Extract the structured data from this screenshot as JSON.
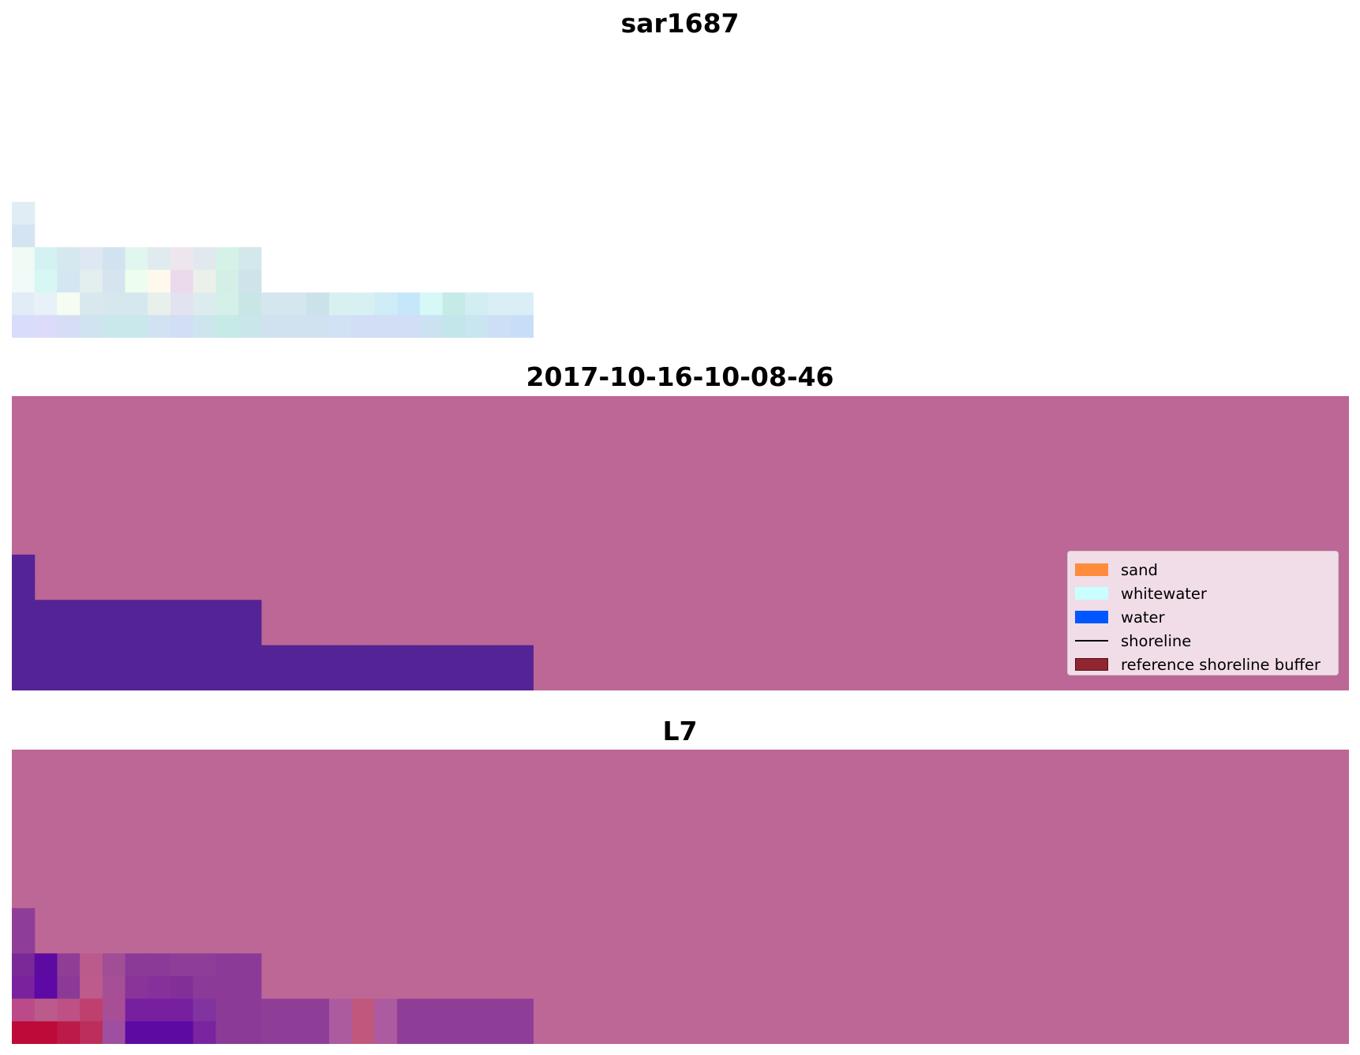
{
  "panels": [
    {
      "title": "sar1687"
    },
    {
      "title": "2017-10-16-10-08-46"
    },
    {
      "title": "L7"
    }
  ],
  "legend": {
    "items": [
      {
        "label": "sand",
        "kind": "patch",
        "color": "#fe8c3c"
      },
      {
        "label": "whitewater",
        "kind": "patch",
        "color": "#c9ffff"
      },
      {
        "label": "water",
        "kind": "patch",
        "color": "#0057ff"
      },
      {
        "label": "shoreline",
        "kind": "line",
        "color": "#000000"
      },
      {
        "label": "reference shoreline buffer",
        "kind": "patch",
        "color": "#8f2630"
      }
    ]
  },
  "colors": {
    "nodata": "#bd6796",
    "water_class": "#542396"
  },
  "image_grids": {
    "sar_rgb": [
      [
        "#e0edf4",
        null,
        null,
        null,
        null,
        null,
        null,
        null,
        null,
        null,
        null,
        null,
        null,
        null,
        null,
        null,
        null,
        null,
        null,
        null,
        null,
        null,
        null
      ],
      [
        "#d5e4f2",
        null,
        null,
        null,
        null,
        null,
        null,
        null,
        null,
        null,
        null,
        null,
        null,
        null,
        null,
        null,
        null,
        null,
        null,
        null,
        null,
        null,
        null
      ],
      [
        "#f2faf6",
        "#d4f2f2",
        "#d5e8f0",
        "#dfe7f3",
        "#d2e2f0",
        "#e0f6ee",
        "#dfebee",
        "#eee6ee",
        "#e2e9ee",
        "#d5f2e8",
        "#d2e8ea",
        null,
        null,
        null,
        null,
        null,
        null,
        null,
        null,
        null,
        null,
        null,
        null
      ],
      [
        "#f1faf8",
        "#d6f7f4",
        "#d4e6f2",
        "#e2efee",
        "#d6e4f0",
        "#eefeee",
        "#fff8ec",
        "#ebd9ec",
        "#ecf0ea",
        "#d4f0e6",
        "#cfe4ea",
        null,
        null,
        null,
        null,
        null,
        null,
        null,
        null,
        null,
        null,
        null,
        null
      ],
      [
        "#e2ecf6",
        "#e8f1f8",
        "#f5fdf3",
        "#d8e8ee",
        "#d6e8ee",
        "#d6e8ee",
        "#e8f0ec",
        "#e3e2f0",
        "#dcecee",
        "#d4f0e8",
        "#c9e6e6",
        "#d4e6ee",
        "#d4e6ee",
        "#cce2ea",
        "#d8f0f0",
        "#d8f0f2",
        "#d0ecf6",
        "#c6e6fa",
        "#d6f8f6",
        "#c6eae6",
        "#d2eef2",
        "#daeef6",
        "#daeef6"
      ],
      [
        "#d7ddfa",
        "#dcdcfa",
        "#d6ddf4",
        "#cfe3f0",
        "#c8e8ec",
        "#c8e8ec",
        "#d2e2f2",
        "#d2ddf6",
        "#cde6ee",
        "#c6eae6",
        "#c9e6ea",
        "#d0e2f0",
        "#d0e2f0",
        "#d0e2f0",
        "#d0e2f4",
        "#d2ddf6",
        "#d2ddf6",
        "#d2ddf6",
        "#cbe2f2",
        "#c3e6ea",
        "#c8e5f0",
        "#ccdff4",
        "#c8ddf8"
      ]
    ],
    "classification": [
      [
        "#542396",
        null,
        null,
        null,
        null,
        null,
        null,
        null,
        null,
        null,
        null,
        null,
        null,
        null,
        null,
        null,
        null,
        null,
        null,
        null,
        null,
        null,
        null
      ],
      [
        "#542396",
        null,
        null,
        null,
        null,
        null,
        null,
        null,
        null,
        null,
        null,
        null,
        null,
        null,
        null,
        null,
        null,
        null,
        null,
        null,
        null,
        null,
        null
      ],
      [
        "#542396",
        "#542396",
        "#542396",
        "#542396",
        "#542396",
        "#542396",
        "#542396",
        "#542396",
        "#542396",
        "#542396",
        "#542396",
        null,
        null,
        null,
        null,
        null,
        null,
        null,
        null,
        null,
        null,
        null,
        null
      ],
      [
        "#542396",
        "#542396",
        "#542396",
        "#542396",
        "#542396",
        "#542396",
        "#542396",
        "#542396",
        "#542396",
        "#542396",
        "#542396",
        null,
        null,
        null,
        null,
        null,
        null,
        null,
        null,
        null,
        null,
        null,
        null
      ],
      [
        "#542396",
        "#542396",
        "#542396",
        "#542396",
        "#542396",
        "#542396",
        "#542396",
        "#542396",
        "#542396",
        "#542396",
        "#542396",
        "#542396",
        "#542396",
        "#542396",
        "#542396",
        "#542396",
        "#542396",
        "#542396",
        "#542396",
        "#542396",
        "#542396",
        "#542396",
        "#542396"
      ],
      [
        "#542396",
        "#542396",
        "#542396",
        "#542396",
        "#542396",
        "#542396",
        "#542396",
        "#542396",
        "#542396",
        "#542396",
        "#542396",
        "#542396",
        "#542396",
        "#542396",
        "#542396",
        "#542396",
        "#542396",
        "#542396",
        "#542396",
        "#542396",
        "#542396",
        "#542396",
        "#542396"
      ]
    ],
    "l7_index": [
      [
        "#8f3e98",
        null,
        null,
        null,
        null,
        null,
        null,
        null,
        null,
        null,
        null,
        null,
        null,
        null,
        null,
        null,
        null,
        null,
        null,
        null,
        null,
        null,
        null
      ],
      [
        "#8f3e98",
        null,
        null,
        null,
        null,
        null,
        null,
        null,
        null,
        null,
        null,
        null,
        null,
        null,
        null,
        null,
        null,
        null,
        null,
        null,
        null,
        null,
        null
      ],
      [
        "#7a2998",
        "#5c0aa2",
        "#8f3e98",
        "#bb5b8c",
        "#a14e96",
        "#8b3a98",
        "#8b3a98",
        "#8f3e98",
        "#8f3e98",
        "#8b3a98",
        "#8b3a98",
        null,
        null,
        null,
        null,
        null,
        null,
        null,
        null,
        null,
        null,
        null,
        null
      ],
      [
        "#7a229e",
        "#5e08a6",
        "#8c3a98",
        "#bd5c8c",
        "#a74f96",
        "#8a349a",
        "#86309c",
        "#823098",
        "#8c3a98",
        "#8c3a98",
        "#8c3a98",
        null,
        null,
        null,
        null,
        null,
        null,
        null,
        null,
        null,
        null,
        null,
        null
      ],
      [
        "#bb4a88",
        "#bb5b8c",
        "#bd5085",
        "#bf3f6e",
        "#a84e95",
        "#7620a0",
        "#7620a0",
        "#7620a0",
        "#8134a0",
        "#8b3a98",
        "#8b3a98",
        "#8f3e98",
        "#8f3e98",
        "#8f3e98",
        "#ad5ba0",
        "#c0587e",
        "#ad5ba0",
        "#8f3e98",
        "#8f3e98",
        "#8f3e98",
        "#8f3e98",
        "#8f3e98",
        "#8f3e98"
      ],
      [
        "#be0a38",
        "#be0a38",
        "#bc1a48",
        "#bc2e5c",
        "#a04ea0",
        "#5c0aa2",
        "#5c0aa2",
        "#5c0aa2",
        "#7a24a0",
        "#8b3a98",
        "#8b3a98",
        "#8f3e98",
        "#8f3e98",
        "#8f3e98",
        "#ad5ba0",
        "#c0587e",
        "#ad5ba0",
        "#8f3e98",
        "#8f3e98",
        "#8f3e98",
        "#8f3e98",
        "#8f3e98",
        "#8f3e98"
      ]
    ]
  }
}
